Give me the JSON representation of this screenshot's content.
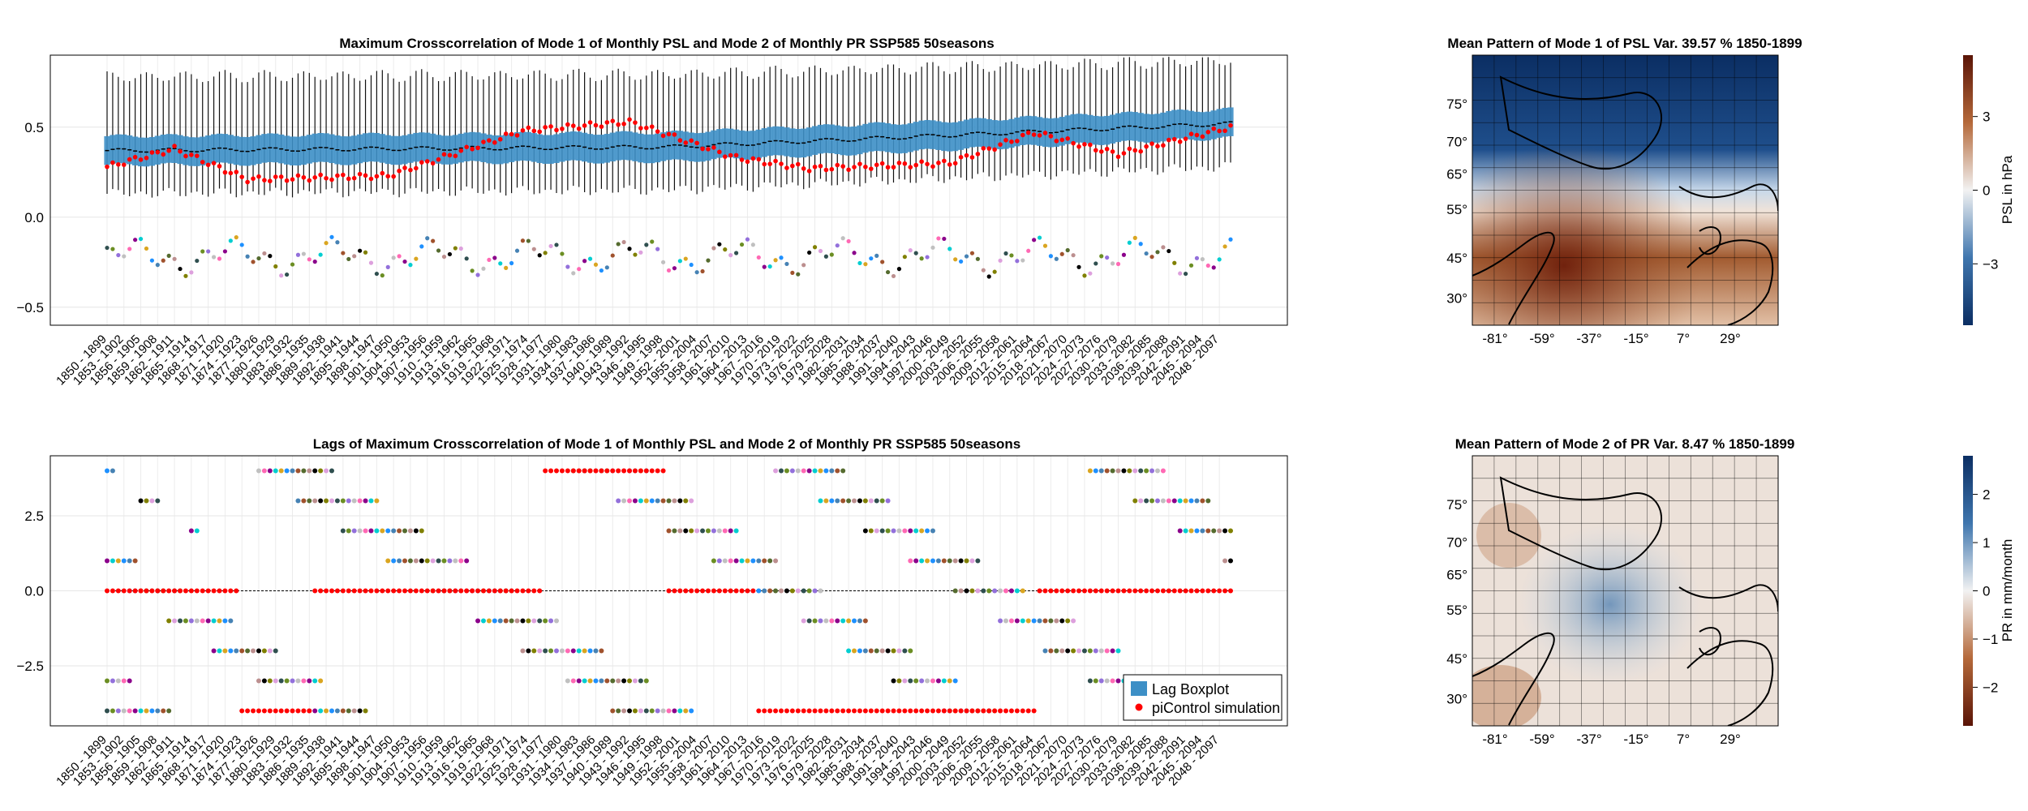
{
  "chart_data": [
    {
      "id": "top",
      "type": "box",
      "title": "Maximum  Crosscorrelation of Mode 1 of Monthly PSL and Mode 2 of Monthly PR SSP585 50seasons",
      "xlabel": "",
      "ylabel": "",
      "ylim": [
        -0.6,
        0.9
      ],
      "yticks": [
        -0.5,
        0.0,
        0.5
      ],
      "ytick_labels": [
        "−0.5",
        "0.0",
        "0.5"
      ],
      "categories_rule": "consecutive 50-year windows starting at 1850 with step 1 year; every third shown as tick label",
      "first_category": "1850 - 1899",
      "last_category": "2050 - 2100",
      "box_color": "#3d8fc6",
      "median_color": "#000000",
      "median_line_approx": {
        "1850 - 1899": 0.37,
        "1950 - 1999": 0.39,
        "2050 - 2100": 0.52
      },
      "box_half_width_approx": 0.08,
      "whisker_range_approx": {
        "low": 0.13,
        "high": 0.78
      },
      "picontrol_series_approx": [
        {
          "x_start": "1850 - 1899",
          "y": 0.28
        },
        {
          "x_start": "1862 - 1911",
          "y": 0.38
        },
        {
          "x_start": "1875 - 1924",
          "y": 0.21
        },
        {
          "x_start": "1900 - 1949",
          "y": 0.23
        },
        {
          "x_start": "1924 - 1973",
          "y": 0.48
        },
        {
          "x_start": "1943 - 1992",
          "y": 0.53
        },
        {
          "x_start": "1962 - 2011",
          "y": 0.33
        },
        {
          "x_start": "1975 - 2024",
          "y": 0.27
        },
        {
          "x_start": "2000 - 2049",
          "y": 0.3
        },
        {
          "x_start": "2015 - 2064",
          "y": 0.47
        },
        {
          "x_start": "2030 - 2079",
          "y": 0.35
        },
        {
          "x_start": "2050 - 2100",
          "y": 0.5
        }
      ],
      "picontrol_color": "#ff0000"
    },
    {
      "id": "bottom",
      "type": "scatter",
      "title": "Lags of Maximum  Crosscorrelation of Mode 1 of Monthly PSL and Mode 2 of Monthly PR SSP585 50seasons",
      "xlabel": "",
      "ylabel": "",
      "ylim": [
        -4.5,
        4.5
      ],
      "yticks": [
        -2.5,
        0.0,
        2.5
      ],
      "ytick_labels": [
        "−2.5",
        "0.0",
        "2.5"
      ],
      "lag_levels": [
        -4,
        -3,
        -2,
        -1,
        0,
        1,
        2,
        3,
        4
      ],
      "picontrol_lag_segments_approx": [
        {
          "from": "1850 - 1899",
          "to": "1873 - 1922",
          "lag": 0
        },
        {
          "from": "1874 - 1923",
          "to": "1886 - 1935",
          "lag": -4
        },
        {
          "from": "1887 - 1936",
          "to": "1927 - 1976",
          "lag": 0
        },
        {
          "from": "1928 - 1977",
          "to": "1949 - 1998",
          "lag": 4
        },
        {
          "from": "1950 - 1999",
          "to": "1965 - 2014",
          "lag": 0
        },
        {
          "from": "1966 - 2015",
          "to": "2015 - 2064",
          "lag": -4
        },
        {
          "from": "2016 - 2065",
          "to": "2050 - 2100",
          "lag": 0
        }
      ],
      "legend": {
        "position": "bottom-right",
        "entries": [
          {
            "label": "Lag Boxplot",
            "color": "#3d8fc6",
            "marker": "square"
          },
          {
            "label": "piControl simulation",
            "color": "#ff0000",
            "marker": "circle"
          }
        ]
      }
    },
    {
      "id": "map_psl",
      "type": "heatmap",
      "title": "Mean Pattern of Mode 1 of PSL Var. 39.57 % 1850-1899",
      "x_ticks": [
        "-81°",
        "-59°",
        "-37°",
        "-15°",
        "7°",
        "29°"
      ],
      "y_ticks": [
        "30°",
        "45°",
        "55°",
        "65°",
        "70°",
        "75°"
      ],
      "colorbar": {
        "label": "PSL in hPa",
        "ticks": [
          "−3",
          "0",
          "3"
        ],
        "colormap": "dark blue (low) - white - dark brown (high)"
      },
      "pattern_description_values": {
        "north_center": "negative (blue)",
        "south_center": "positive (brown)"
      }
    },
    {
      "id": "map_pr",
      "type": "heatmap",
      "title": "Mean Pattern of Mode 2 of PR Var. 8.47 % 1850-1899",
      "x_ticks": [
        "-81°",
        "-59°",
        "-37°",
        "-15°",
        "7°",
        "29°"
      ],
      "y_ticks": [
        "30°",
        "45°",
        "55°",
        "65°",
        "70°",
        "75°"
      ],
      "colorbar": {
        "label": "PR in mm/month",
        "ticks": [
          "−2",
          "−1",
          "0",
          "1",
          "2"
        ],
        "colormap": "dark brown (low) - white - dark blue (high)"
      }
    }
  ],
  "colors": {
    "box": "#3d8fc6",
    "picontrol": "#ff0000",
    "grid": "#e6e6e6"
  }
}
